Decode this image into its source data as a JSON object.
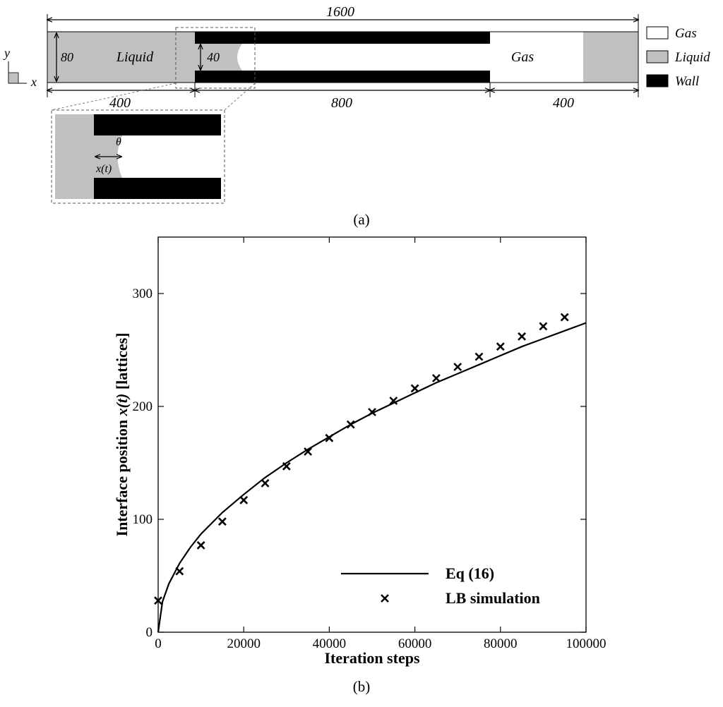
{
  "panel_a": {
    "caption": "(a)",
    "dims": {
      "total": "1600",
      "height": "80",
      "gap": "40",
      "left": "400",
      "middle": "800",
      "right": "400"
    },
    "region_labels": {
      "liquid": "Liquid",
      "gas": "Gas"
    },
    "axes": {
      "y": "y",
      "x": "x"
    },
    "inset": {
      "theta": "θ",
      "xt": "x(t)"
    },
    "legend": [
      {
        "label": "Gas",
        "color": "#ffffff"
      },
      {
        "label": "Liquid",
        "color": "#c0c0c0"
      },
      {
        "label": "Wall",
        "color": "#000000"
      }
    ]
  },
  "panel_b": {
    "caption": "(b)"
  },
  "chart_data": {
    "type": "line",
    "xlabel": "Iteration steps",
    "ylabel_prefix": "Interface position ",
    "ylabel_var": "x(t)",
    "ylabel_suffix": " [lattices]",
    "xlim": [
      0,
      100000
    ],
    "ylim": [
      0,
      350
    ],
    "xticks": [
      0,
      20000,
      40000,
      60000,
      80000,
      100000
    ],
    "xtick_labels": [
      "0",
      "20000",
      "40000",
      "60000",
      "80000",
      "100000"
    ],
    "yticks": [
      0,
      100,
      200,
      300
    ],
    "ytick_labels": [
      "0",
      "100",
      "200",
      "300"
    ],
    "legend_placement": "bottom-right",
    "series": [
      {
        "name": "Eq (16)",
        "kind": "line",
        "x": [
          0,
          1000,
          2500,
          5000,
          7500,
          10000,
          15000,
          20000,
          25000,
          30000,
          35000,
          40000,
          45000,
          50000,
          55000,
          60000,
          65000,
          70000,
          75000,
          80000,
          85000,
          90000,
          95000,
          100000
        ],
        "y": [
          0,
          27,
          43,
          61,
          75,
          87,
          106,
          122,
          137,
          150,
          162,
          173,
          184,
          194,
          203,
          212,
          221,
          229,
          237,
          245,
          253,
          260,
          267,
          274
        ]
      },
      {
        "name": "LB simulation",
        "kind": "scatter",
        "marker": "x",
        "x": [
          0,
          5000,
          10000,
          15000,
          20000,
          25000,
          30000,
          35000,
          40000,
          45000,
          50000,
          55000,
          60000,
          65000,
          70000,
          75000,
          80000,
          85000,
          90000,
          95000
        ],
        "y": [
          28,
          54,
          77,
          98,
          117,
          132,
          147,
          160,
          172,
          184,
          195,
          205,
          216,
          225,
          235,
          244,
          253,
          262,
          271,
          279
        ]
      }
    ]
  }
}
